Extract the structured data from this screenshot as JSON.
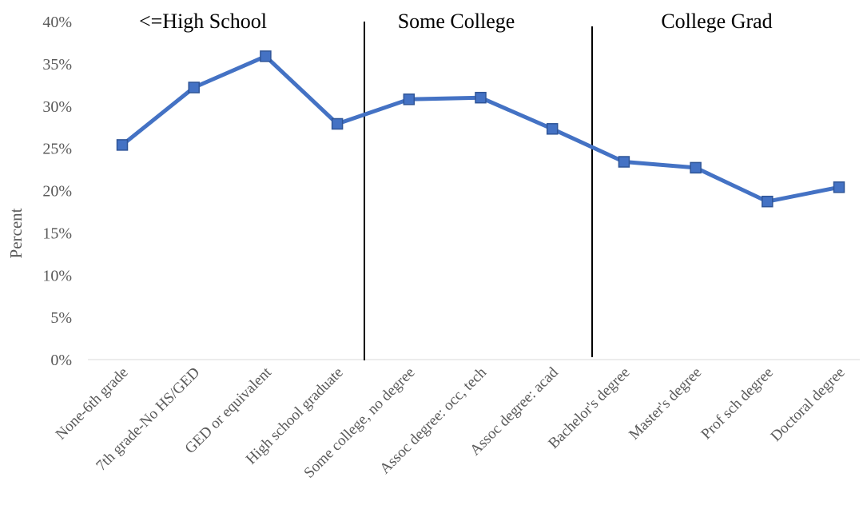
{
  "chart_data": {
    "type": "line",
    "title": "",
    "xlabel": "",
    "ylabel": "Percent",
    "ylim": [
      0,
      40
    ],
    "yticks": [
      "0%",
      "5%",
      "10%",
      "15%",
      "20%",
      "25%",
      "30%",
      "35%",
      "40%"
    ],
    "grid": false,
    "categories": [
      "None-6th grade",
      "7th grade-No HS/GED",
      "GED or equivalent",
      "High school graduate",
      "Some college, no degree",
      "Assoc degree: occ, tech",
      "Assoc degree: acad",
      "Bachelor's degree",
      "Master's degree",
      "Prof sch degree",
      "Doctoral degree"
    ],
    "series": [
      {
        "values": [
          25.4,
          32.2,
          35.9,
          27.9,
          30.8,
          31.0,
          27.3,
          23.4,
          22.7,
          18.7,
          20.4
        ],
        "color": "#4472C4",
        "marker": "square"
      }
    ],
    "sections": [
      {
        "label": "<=High School"
      },
      {
        "label": "Some College"
      },
      {
        "label": "College Grad"
      }
    ]
  }
}
